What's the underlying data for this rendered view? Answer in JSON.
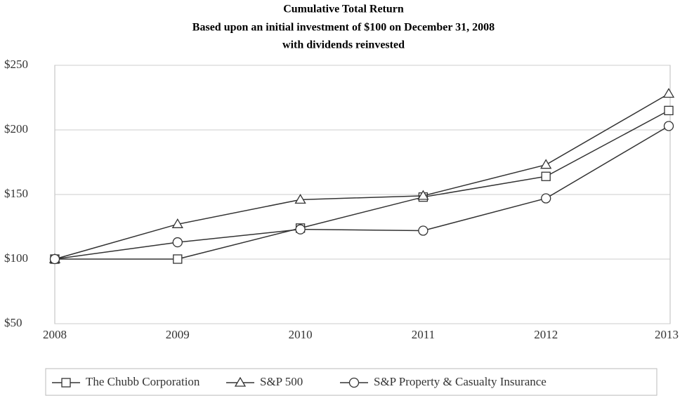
{
  "chart_data": {
    "type": "line",
    "title": [
      "Cumulative Total Return",
      "Based upon an initial investment of $100 on December 31, 2008",
      "with dividends reinvested"
    ],
    "categories": [
      "2008",
      "2009",
      "2010",
      "2011",
      "2012",
      "2013"
    ],
    "series": [
      {
        "name": "The Chubb Corporation",
        "color": "#333333",
        "marker": "square",
        "values": [
          100,
          100,
          124,
          148,
          164,
          215
        ]
      },
      {
        "name": "S&P 500",
        "color": "#333333",
        "marker": "triangle",
        "values": [
          100,
          127,
          146,
          149,
          173,
          228
        ]
      },
      {
        "name": "S&P Property & Casualty Insurance",
        "color": "#333333",
        "marker": "circle",
        "values": [
          100,
          113,
          123,
          122,
          147,
          203
        ]
      }
    ],
    "ylim": [
      50,
      250
    ],
    "yticks": [
      {
        "value": 50,
        "label": "$50"
      },
      {
        "value": 100,
        "label": "$100"
      },
      {
        "value": 150,
        "label": "$150"
      },
      {
        "value": 200,
        "label": "$200"
      },
      {
        "value": 250,
        "label": "$250"
      }
    ],
    "grid": true,
    "legend": "bottom"
  }
}
